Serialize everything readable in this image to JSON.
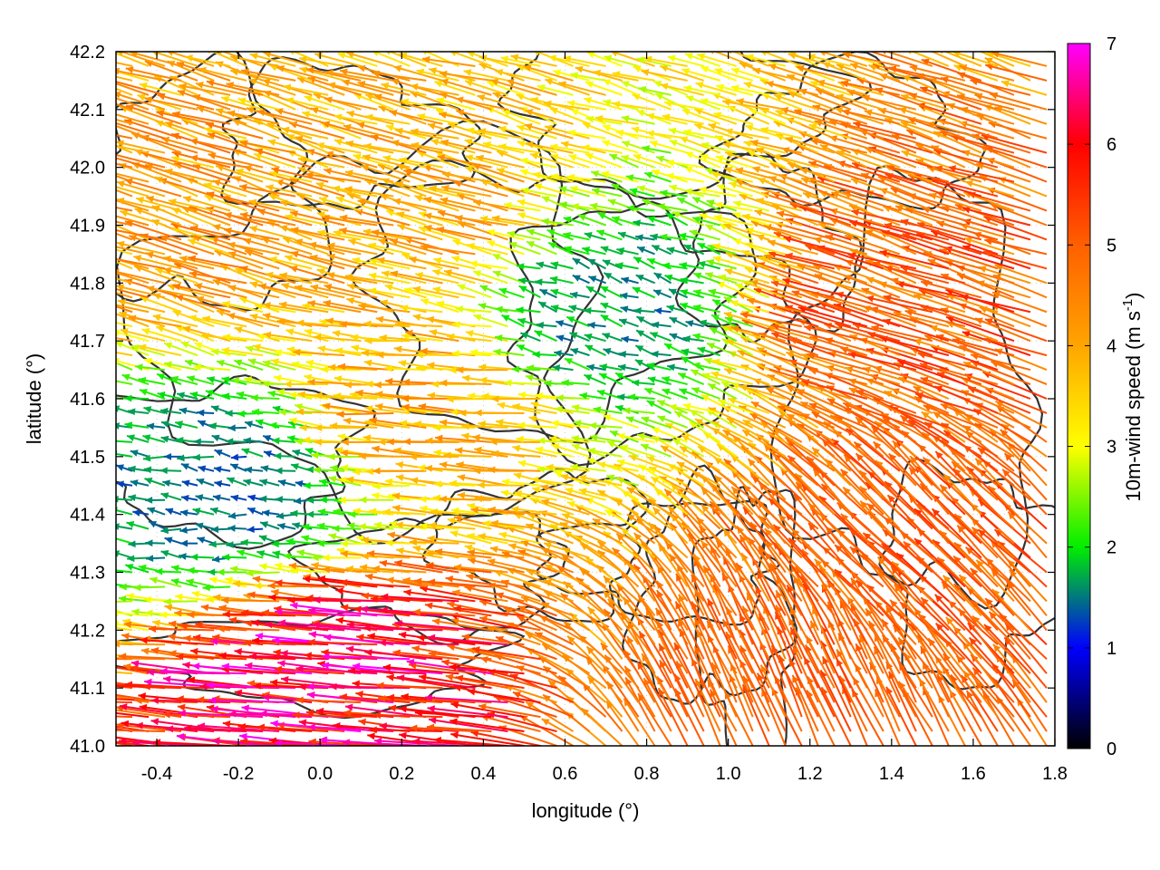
{
  "chart_data": {
    "type": "vector_field",
    "xlabel": "longitude (°)",
    "ylabel": "latitude (°)",
    "xlim": [
      -0.5,
      1.8
    ],
    "ylim": [
      41.0,
      42.2
    ],
    "x_ticks": [
      "-0.4",
      "-0.2",
      "0.0",
      "0.2",
      "0.4",
      "0.6",
      "0.8",
      "1.0",
      "1.2",
      "1.4",
      "1.6",
      "1.8"
    ],
    "y_ticks": [
      "41.0",
      "41.1",
      "41.2",
      "41.3",
      "41.4",
      "41.5",
      "41.6",
      "41.7",
      "41.8",
      "41.9",
      "42.0",
      "42.1",
      "42.2"
    ],
    "grid": true,
    "colorbar": {
      "label_main": "10m-wind speed (m s",
      "label_sup": "-1",
      "label_end": ")",
      "range": [
        0,
        7
      ],
      "ticks": [
        "0",
        "1",
        "2",
        "3",
        "4",
        "5",
        "6",
        "7"
      ],
      "placement": "right",
      "stops": [
        {
          "value": 0,
          "color": "#000000"
        },
        {
          "value": 1,
          "color": "#0000ff"
        },
        {
          "value": 2,
          "color": "#00ee00"
        },
        {
          "value": 3,
          "color": "#ffff00"
        },
        {
          "value": 4,
          "color": "#ffa500"
        },
        {
          "value": 5,
          "color": "#ff6000"
        },
        {
          "value": 6,
          "color": "#ff0000"
        },
        {
          "value": 7,
          "color": "#ff00ff"
        }
      ]
    },
    "overlay": {
      "type": "contour",
      "color": "#333333",
      "description": "terrain elevation contours"
    },
    "wind_field_approx": {
      "note": "region means (lon, lat, u, v in m/s)",
      "regions": [
        {
          "lon": -0.3,
          "lat": 41.9,
          "u": -3.9,
          "v": 1.2
        },
        {
          "lon": 0.3,
          "lat": 41.9,
          "u": -3.7,
          "v": 1.0
        },
        {
          "lon": 0.7,
          "lat": 41.75,
          "u": -1.5,
          "v": 0.5
        },
        {
          "lon": -0.2,
          "lat": 41.45,
          "u": -1.4,
          "v": 0.2
        },
        {
          "lon": 0.3,
          "lat": 41.6,
          "u": -3.8,
          "v": 0.3
        },
        {
          "lon": 1.5,
          "lat": 41.75,
          "u": -4.6,
          "v": 1.5
        },
        {
          "lon": 1.5,
          "lat": 41.3,
          "u": -3.5,
          "v": 3.5
        },
        {
          "lon": 0.1,
          "lat": 41.1,
          "u": -6.0,
          "v": 0.5
        },
        {
          "lon": 1.2,
          "lat": 41.1,
          "u": -2.0,
          "v": 4.5
        }
      ]
    }
  }
}
